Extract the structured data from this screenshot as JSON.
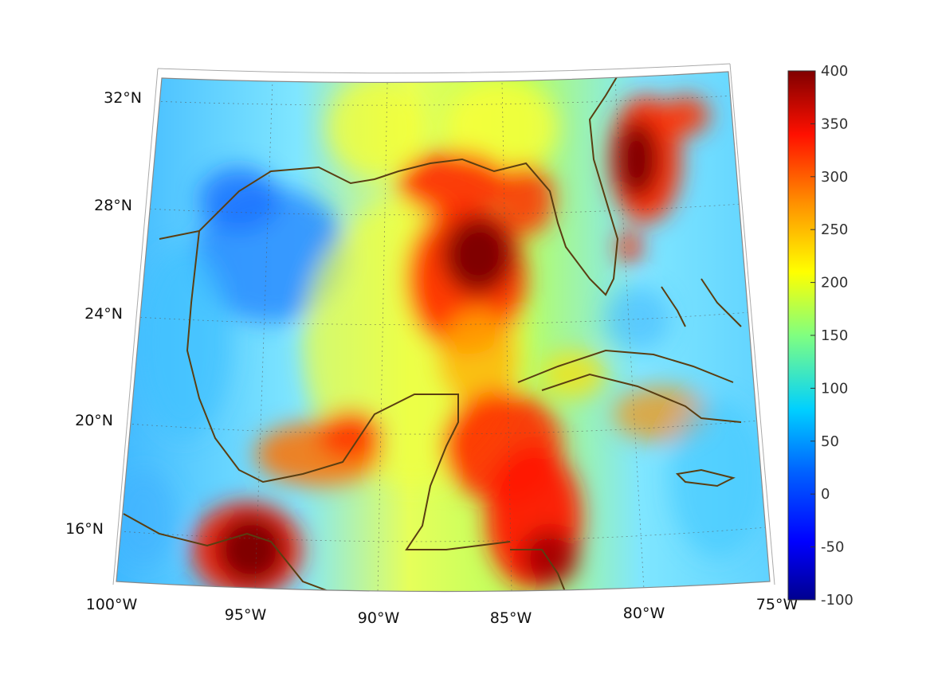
{
  "map": {
    "projection": "conic",
    "region": "Gulf of Mexico and Caribbean",
    "lon_range": [
      -100,
      -75
    ],
    "lat_range": [
      14,
      33
    ],
    "graticule": "dotted",
    "coastline_color": "#5a3e12",
    "colormap": "jet",
    "lon_labels": [
      "100°W",
      "95°W",
      "90°W",
      "85°W",
      "80°W",
      "75°W"
    ],
    "lat_labels": [
      "16°N",
      "20°N",
      "24°N",
      "28°N",
      "32°N"
    ]
  },
  "colorbar": {
    "min": -100,
    "max": 400,
    "ticks": [
      "400",
      "350",
      "300",
      "250",
      "200",
      "150",
      "100",
      "50",
      "0",
      "-50",
      "-100"
    ]
  }
}
